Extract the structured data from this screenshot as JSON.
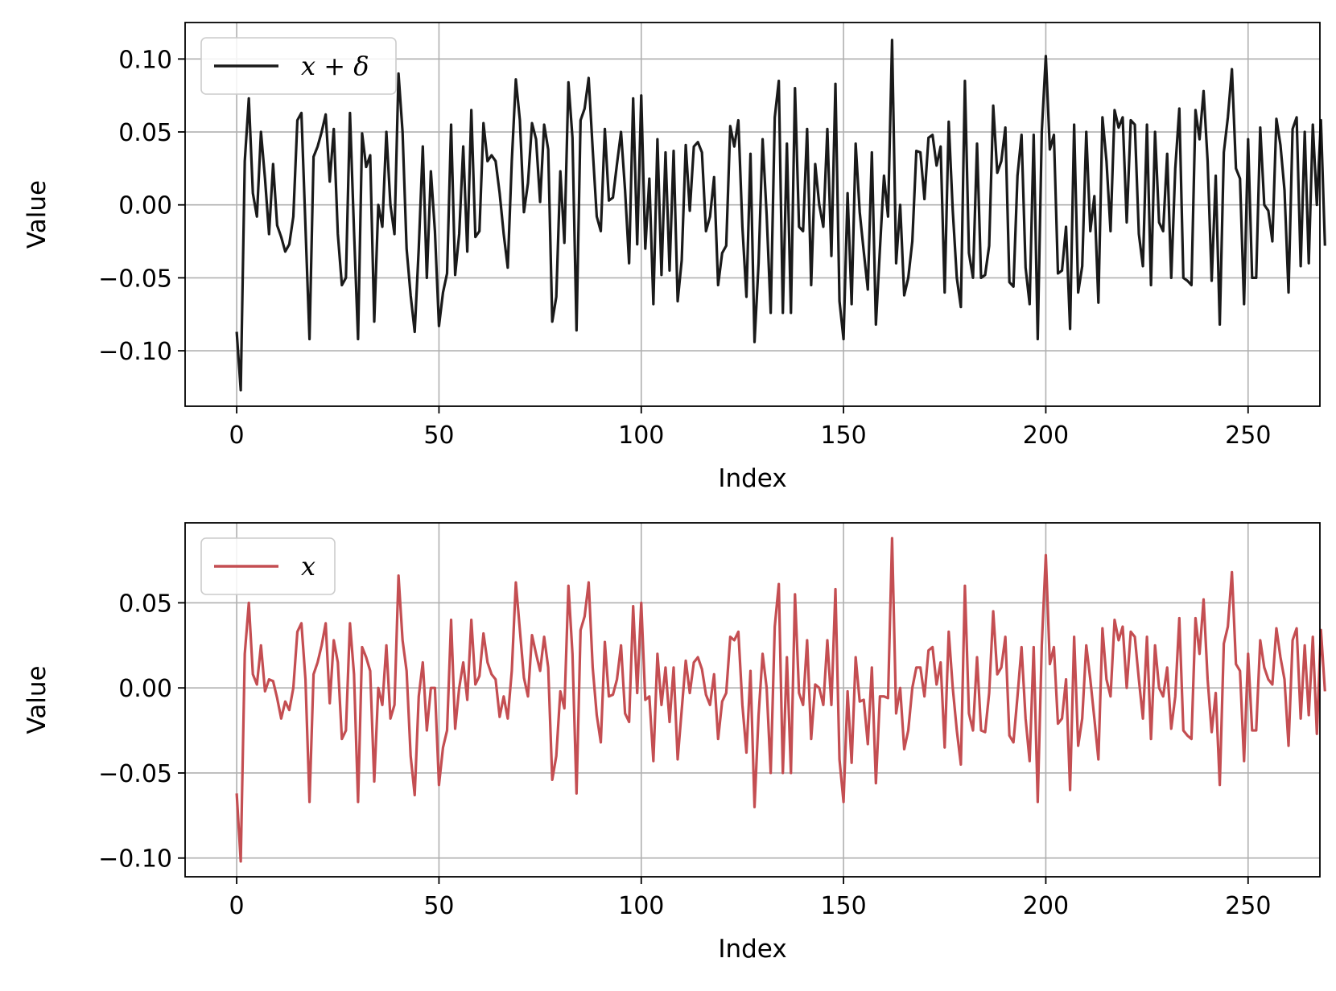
{
  "chart_data": [
    {
      "type": "line",
      "xlabel": "Index",
      "ylabel": "Value",
      "xlim": [
        -12.75,
        267.75
      ],
      "ylim": [
        -0.138,
        0.125
      ],
      "xticks": [
        0,
        50,
        100,
        150,
        200,
        250
      ],
      "yticks": [
        -0.1,
        -0.05,
        0.0,
        0.05,
        0.1
      ],
      "ytick_labels": [
        "−0.10",
        "−0.05",
        "0.00",
        "0.05",
        "0.10"
      ],
      "grid": true,
      "legend_position": "upper-left",
      "series": [
        {
          "name": "x + δ",
          "color": "#1a1a1a",
          "x_start": 0,
          "values": [
            -0.087,
            -0.127,
            0.03,
            0.073,
            0.008,
            -0.008,
            0.05,
            0.018,
            -0.02,
            0.028,
            -0.014,
            -0.022,
            -0.032,
            -0.027,
            -0.008,
            0.058,
            0.063,
            -0.015,
            -0.092,
            0.033,
            0.04,
            0.05,
            0.062,
            0.016,
            0.052,
            -0.02,
            -0.055,
            -0.05,
            0.063,
            -0.018,
            -0.092,
            0.049,
            0.026,
            0.034,
            -0.08,
            0.0,
            -0.015,
            0.05,
            0.0,
            -0.02,
            0.09,
            0.05,
            -0.03,
            -0.062,
            -0.087,
            -0.03,
            0.04,
            -0.05,
            0.023,
            -0.018,
            -0.083,
            -0.06,
            -0.047,
            0.055,
            -0.048,
            -0.02,
            0.04,
            -0.032,
            0.065,
            -0.022,
            -0.018,
            0.056,
            0.03,
            0.034,
            0.03,
            0.008,
            -0.02,
            -0.043,
            0.03,
            0.086,
            0.058,
            -0.005,
            0.015,
            0.056,
            0.045,
            0.002,
            0.055,
            0.038,
            -0.08,
            -0.063,
            0.023,
            -0.026,
            0.084,
            0.046,
            -0.086,
            0.058,
            0.066,
            0.087,
            0.038,
            -0.008,
            -0.018,
            0.052,
            0.003,
            0.005,
            0.028,
            0.05,
            0.01,
            -0.04,
            0.073,
            -0.027,
            0.075,
            -0.03,
            0.018,
            -0.068,
            0.045,
            -0.048,
            0.036,
            -0.045,
            0.037,
            -0.066,
            -0.038,
            0.041,
            -0.004,
            0.04,
            0.043,
            0.036,
            -0.018,
            -0.008,
            0.019,
            -0.055,
            -0.033,
            -0.028,
            0.054,
            0.04,
            0.058,
            -0.015,
            -0.063,
            0.035,
            -0.094,
            -0.04,
            0.045,
            -0.007,
            -0.074,
            0.06,
            0.085,
            -0.074,
            0.042,
            -0.074,
            0.08,
            -0.015,
            -0.018,
            0.052,
            -0.055,
            0.028,
            0.0,
            -0.015,
            0.052,
            -0.035,
            0.083,
            -0.066,
            -0.092,
            0.008,
            -0.068,
            0.042,
            -0.005,
            -0.032,
            -0.058,
            0.036,
            -0.082,
            -0.03,
            0.02,
            -0.008,
            0.113,
            -0.04,
            0.0,
            -0.062,
            -0.05,
            -0.025,
            0.037,
            0.036,
            0.004,
            0.046,
            0.048,
            0.027,
            0.04,
            -0.06,
            0.057,
            -0.004,
            -0.05,
            -0.07,
            0.085,
            -0.033,
            -0.05,
            0.042,
            -0.05,
            -0.048,
            -0.028,
            0.068,
            0.022,
            0.03,
            0.053,
            -0.053,
            -0.056,
            0.02,
            0.048,
            -0.043,
            -0.068,
            0.048,
            -0.092,
            0.05,
            0.102,
            0.038,
            0.048,
            -0.047,
            -0.045,
            -0.015,
            -0.085,
            0.055,
            -0.06,
            -0.042,
            0.05,
            -0.018,
            0.006,
            -0.067,
            0.06,
            0.03,
            -0.018,
            0.065,
            0.053,
            0.06,
            -0.012,
            0.058,
            0.055,
            -0.02,
            -0.042,
            0.055,
            -0.055,
            0.05,
            -0.012,
            -0.018,
            0.035,
            -0.05,
            0.025,
            0.066,
            -0.05,
            -0.052,
            -0.055,
            0.065,
            0.045,
            0.078,
            0.03,
            -0.052,
            0.02,
            -0.082,
            0.036,
            0.06,
            0.093,
            0.025,
            0.018,
            -0.068,
            0.045,
            -0.05,
            -0.05,
            0.053,
            0.0,
            -0.004,
            -0.025,
            0.059,
            0.041,
            0.01,
            -0.06,
            0.052,
            0.06,
            -0.042,
            0.05,
            -0.04,
            0.055,
            0.0,
            0.058,
            -0.028
          ]
        }
      ]
    },
    {
      "type": "line",
      "xlabel": "Index",
      "ylabel": "Value",
      "xlim": [
        -12.75,
        267.75
      ],
      "ylim": [
        -0.111,
        0.097
      ],
      "xticks": [
        0,
        50,
        100,
        150,
        200,
        250
      ],
      "yticks": [
        -0.1,
        -0.05,
        0.0,
        0.05
      ],
      "ytick_labels": [
        "−0.10",
        "−0.05",
        "0.00",
        "0.05"
      ],
      "grid": true,
      "legend_position": "upper-left",
      "series": [
        {
          "name": "x",
          "color": "#c44e52",
          "x_start": 0,
          "values": [
            -0.062,
            -0.102,
            0.02,
            0.05,
            0.008,
            0.002,
            0.025,
            -0.002,
            0.005,
            0.004,
            -0.006,
            -0.018,
            -0.008,
            -0.013,
            0.0,
            0.033,
            0.038,
            0.005,
            -0.067,
            0.008,
            0.015,
            0.025,
            0.038,
            -0.009,
            0.028,
            0.015,
            -0.03,
            -0.025,
            0.038,
            0.008,
            -0.067,
            0.024,
            0.018,
            0.01,
            -0.055,
            0.0,
            -0.01,
            0.025,
            -0.018,
            -0.01,
            0.066,
            0.028,
            0.01,
            -0.04,
            -0.063,
            -0.005,
            0.015,
            -0.025,
            0.0,
            0.0,
            -0.057,
            -0.035,
            -0.025,
            0.04,
            -0.024,
            0.0,
            0.015,
            -0.007,
            0.04,
            0.002,
            0.007,
            0.032,
            0.015,
            0.008,
            0.005,
            -0.017,
            -0.005,
            -0.018,
            0.01,
            0.062,
            0.034,
            0.006,
            -0.005,
            0.031,
            0.02,
            0.01,
            0.03,
            0.012,
            -0.054,
            -0.04,
            -0.002,
            -0.012,
            0.06,
            0.02,
            -0.062,
            0.034,
            0.042,
            0.062,
            0.012,
            -0.016,
            -0.032,
            0.027,
            -0.005,
            -0.004,
            0.005,
            0.025,
            -0.015,
            -0.02,
            0.048,
            -0.003,
            0.05,
            -0.007,
            -0.005,
            -0.043,
            0.02,
            -0.01,
            0.012,
            -0.02,
            0.012,
            -0.042,
            -0.013,
            0.016,
            -0.003,
            0.015,
            0.018,
            0.011,
            -0.004,
            -0.01,
            0.008,
            -0.03,
            -0.008,
            -0.003,
            0.03,
            0.028,
            0.033,
            -0.01,
            -0.038,
            0.01,
            -0.07,
            -0.016,
            0.02,
            0.0,
            -0.05,
            0.036,
            0.061,
            -0.05,
            0.018,
            -0.05,
            0.055,
            -0.003,
            -0.01,
            0.028,
            -0.03,
            0.002,
            0.0,
            -0.01,
            0.028,
            -0.01,
            0.058,
            -0.042,
            -0.067,
            -0.002,
            -0.044,
            0.018,
            -0.008,
            -0.007,
            -0.033,
            0.012,
            -0.056,
            -0.005,
            -0.005,
            -0.006,
            0.088,
            -0.015,
            0.0,
            -0.036,
            -0.025,
            0.0,
            0.012,
            0.012,
            -0.005,
            0.022,
            0.024,
            0.002,
            0.015,
            -0.035,
            0.033,
            0.0,
            -0.025,
            -0.045,
            0.06,
            -0.015,
            -0.025,
            0.018,
            -0.025,
            -0.026,
            -0.003,
            0.045,
            0.008,
            0.012,
            0.03,
            -0.028,
            -0.032,
            -0.005,
            0.024,
            -0.018,
            -0.043,
            0.024,
            -0.067,
            0.025,
            0.078,
            0.014,
            0.024,
            -0.021,
            -0.018,
            0.005,
            -0.06,
            0.03,
            -0.034,
            -0.018,
            0.025,
            0.005,
            -0.018,
            -0.042,
            0.035,
            0.005,
            -0.005,
            0.04,
            0.028,
            0.036,
            0.0,
            0.033,
            0.03,
            0.005,
            -0.018,
            0.03,
            -0.03,
            0.025,
            0.0,
            -0.005,
            0.012,
            -0.024,
            -0.005,
            0.041,
            -0.025,
            -0.028,
            -0.03,
            0.041,
            0.02,
            0.052,
            0.005,
            -0.026,
            -0.003,
            -0.057,
            0.026,
            0.036,
            0.068,
            0.014,
            0.01,
            -0.043,
            0.02,
            -0.025,
            -0.025,
            0.028,
            0.012,
            0.005,
            0.002,
            0.035,
            0.018,
            0.005,
            -0.034,
            0.028,
            0.035,
            -0.018,
            0.025,
            -0.016,
            0.03,
            -0.027,
            0.034,
            -0.002
          ]
        }
      ]
    }
  ]
}
